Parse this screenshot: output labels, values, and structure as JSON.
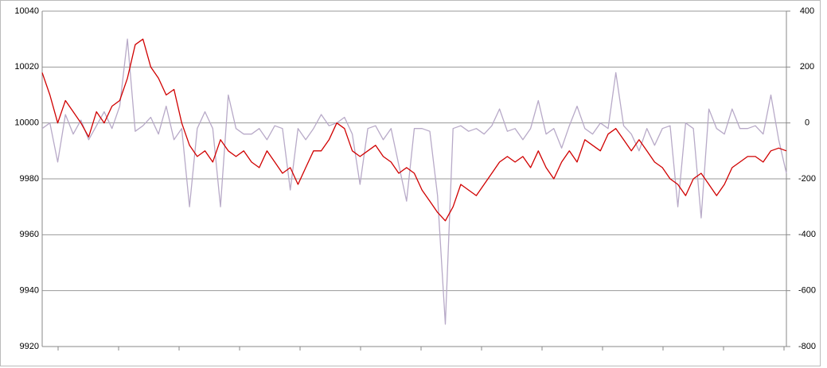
{
  "chart_data": {
    "type": "line",
    "categories": [
      null,
      null,
      null,
      null,
      null,
      null,
      null,
      null,
      null,
      null,
      null,
      null,
      null,
      null,
      null,
      null,
      null,
      null,
      null,
      null,
      null,
      null,
      null,
      null,
      null,
      null,
      null,
      null,
      null,
      null,
      null,
      null,
      null,
      null,
      null,
      null,
      null,
      null,
      null,
      null,
      null,
      null,
      null,
      null,
      null,
      null,
      null,
      null,
      null,
      null,
      null,
      null,
      null,
      null,
      null,
      null,
      null,
      null,
      null,
      null,
      null,
      null,
      null,
      null,
      null,
      null,
      null,
      null,
      null,
      null,
      null,
      null,
      null,
      null,
      null,
      null,
      null,
      null,
      null,
      null,
      null,
      null,
      null,
      null,
      null,
      null,
      null,
      null,
      null,
      null,
      null,
      null,
      null,
      null,
      null,
      null,
      null
    ],
    "series": [
      {
        "color": "#b8aac8",
        "axis": "y2",
        "values": [
          -20,
          0,
          -140,
          30,
          -40,
          10,
          -60,
          -10,
          40,
          -20,
          60,
          300,
          -30,
          -10,
          20,
          -40,
          60,
          -60,
          -20,
          -300,
          -20,
          40,
          -20,
          -300,
          100,
          -20,
          -40,
          -40,
          -20,
          -60,
          -10,
          -20,
          -240,
          -20,
          -60,
          -20,
          30,
          -10,
          0,
          20,
          -40,
          -220,
          -20,
          -10,
          -60,
          -20,
          -150,
          -280,
          -20,
          -20,
          -30,
          -260,
          -720,
          -20,
          -10,
          -30,
          -20,
          -40,
          -10,
          50,
          -30,
          -20,
          -60,
          -20,
          80,
          -40,
          -20,
          -90,
          -10,
          60,
          -20,
          -40,
          0,
          -20,
          180,
          -10,
          -40,
          -100,
          -20,
          -80,
          -20,
          -10,
          -300,
          0,
          -20,
          -340,
          50,
          -20,
          -40,
          50,
          -20,
          -20,
          -10,
          -40,
          100,
          -60,
          -180
        ]
      },
      {
        "color": "#d00000",
        "values": [
          10018,
          10010,
          10000,
          10008,
          10004,
          10000,
          9995,
          10004,
          10000,
          10006,
          10008,
          10016,
          10028,
          10030,
          10020,
          10016,
          10010,
          10012,
          10000,
          9992,
          9988,
          9990,
          9986,
          9994,
          9990,
          9988,
          9990,
          9986,
          9984,
          9990,
          9986,
          9982,
          9984,
          9978,
          9984,
          9990,
          9990,
          9994,
          10000,
          9998,
          9990,
          9988,
          9990,
          9992,
          9988,
          9986,
          9982,
          9984,
          9982,
          9976,
          9972,
          9968,
          9965,
          9970,
          9978,
          9976,
          9974,
          9978,
          9982,
          9986,
          9988,
          9986,
          9988,
          9984,
          9990,
          9984,
          9980,
          9986,
          9990,
          9986,
          9994,
          9992,
          9990,
          9996,
          9998,
          9994,
          9990,
          9994,
          9990,
          9986,
          9984,
          9980,
          9978,
          9974,
          9980,
          9982,
          9978,
          9974,
          9978,
          9984,
          9986,
          9988,
          9988,
          9986,
          9990,
          9991,
          9990
        ]
      }
    ],
    "ylim": [
      9920,
      10040
    ],
    "yticks": [
      9920,
      9940,
      9960,
      9980,
      10000,
      10020,
      10040
    ],
    "y2lim": [
      -800,
      400
    ],
    "y2ticks": [
      -800,
      -600,
      -400,
      -200,
      0,
      200,
      400
    ],
    "grid": true
  }
}
